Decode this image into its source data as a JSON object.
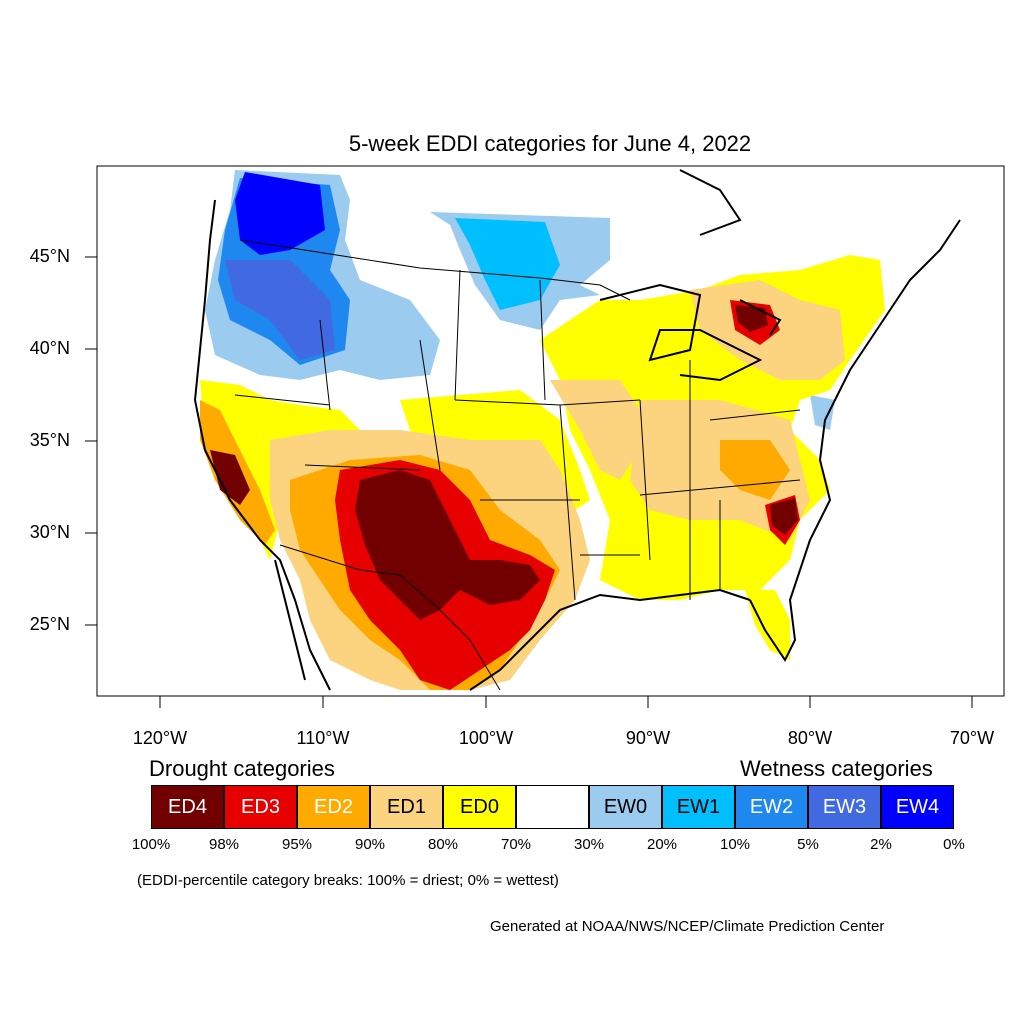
{
  "title": "5-week EDDI categories for June 4, 2022",
  "latitude_labels": [
    "45°N",
    "40°N",
    "35°N",
    "30°N",
    "25°N"
  ],
  "longitude_labels": [
    "120°W",
    "110°W",
    "100°W",
    "90°W",
    "80°W",
    "70°W"
  ],
  "legend": {
    "drought_heading": "Drought categories",
    "wetness_heading": "Wetness categories",
    "categories": [
      {
        "label": "ED4",
        "color": "#730000",
        "text_color": "#ffffff"
      },
      {
        "label": "ED3",
        "color": "#e60000",
        "text_color": "#ffffff"
      },
      {
        "label": "ED2",
        "color": "#ffaa00",
        "text_color": "#ffffff"
      },
      {
        "label": "ED1",
        "color": "#fcd37f",
        "text_color": "#000000"
      },
      {
        "label": "ED0",
        "color": "#ffff00",
        "text_color": "#000000"
      },
      {
        "label": "",
        "color": "#ffffff",
        "text_color": "#000000"
      },
      {
        "label": "EW0",
        "color": "#9bcbee",
        "text_color": "#000000"
      },
      {
        "label": "EW1",
        "color": "#00bfff",
        "text_color": "#000000"
      },
      {
        "label": "EW2",
        "color": "#1e88f0",
        "text_color": "#ffffff"
      },
      {
        "label": "EW3",
        "color": "#4169e1",
        "text_color": "#ffffff"
      },
      {
        "label": "EW4",
        "color": "#0000ff",
        "text_color": "#ffffff"
      }
    ],
    "breaks": [
      "100%",
      "98%",
      "95%",
      "90%",
      "80%",
      "70%",
      "30%",
      "20%",
      "10%",
      "5%",
      "2%",
      "0%"
    ]
  },
  "note": "(EDDI-percentile category breaks: 100% = driest; 0% = wettest)",
  "credit": "Generated at NOAA/NWS/NCEP/Climate Prediction Center"
}
